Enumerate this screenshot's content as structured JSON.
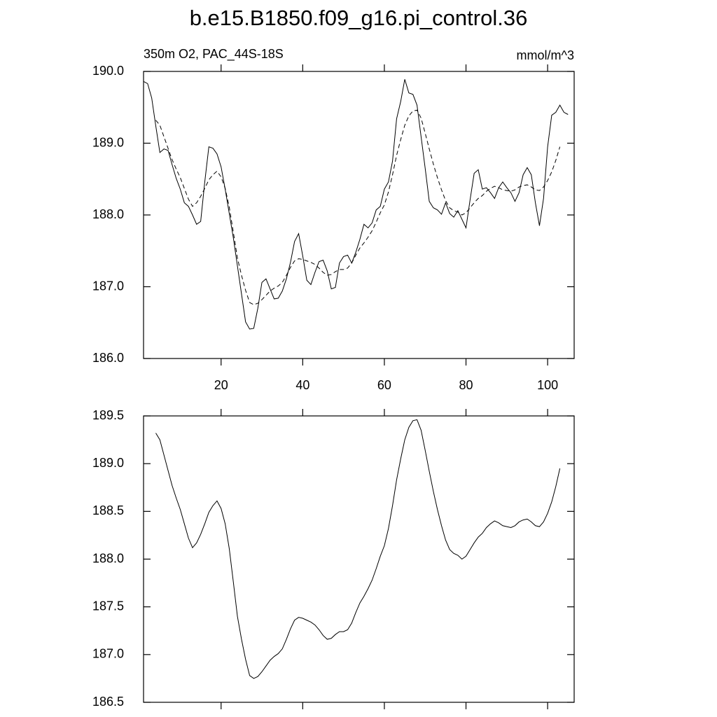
{
  "chart_data": [
    {
      "type": "line",
      "title": "b.e15.B1850.f09_g16.pi_control.36",
      "subtitle_left": "350m O2, PAC_44S-18S",
      "subtitle_right": "mmol/m^3",
      "x": [
        1,
        2,
        3,
        4,
        5,
        6,
        7,
        8,
        9,
        10,
        11,
        12,
        13,
        14,
        15,
        16,
        17,
        18,
        19,
        20,
        21,
        22,
        23,
        24,
        25,
        26,
        27,
        28,
        29,
        30,
        31,
        32,
        33,
        34,
        35,
        36,
        37,
        38,
        39,
        40,
        41,
        42,
        43,
        44,
        45,
        46,
        47,
        48,
        49,
        50,
        51,
        52,
        53,
        54,
        55,
        56,
        57,
        58,
        59,
        60,
        61,
        62,
        63,
        64,
        65,
        66,
        67,
        68,
        69,
        70,
        71,
        72,
        73,
        74,
        75,
        76,
        77,
        78,
        79,
        80,
        81,
        82,
        83,
        84,
        85,
        86,
        87,
        88,
        89,
        90,
        91,
        92,
        93,
        94,
        95,
        96,
        97,
        98,
        99,
        100,
        101,
        102,
        103,
        104,
        105
      ],
      "series": [
        {
          "color": "#000000",
          "dash": "solid",
          "values": [
            189.86,
            189.83,
            189.63,
            189.24,
            188.87,
            188.92,
            188.9,
            188.7,
            188.51,
            188.36,
            188.17,
            188.12,
            188.0,
            187.87,
            187.91,
            188.46,
            188.95,
            188.93,
            188.85,
            188.67,
            188.36,
            188.02,
            187.68,
            187.29,
            186.9,
            186.51,
            186.41,
            186.42,
            186.7,
            187.06,
            187.11,
            186.97,
            186.83,
            186.84,
            186.94,
            187.11,
            187.34,
            187.63,
            187.74,
            187.43,
            187.09,
            187.03,
            187.2,
            187.35,
            187.37,
            187.22,
            186.97,
            186.99,
            187.33,
            187.42,
            187.44,
            187.33,
            187.48,
            187.66,
            187.87,
            187.82,
            187.89,
            188.07,
            188.12,
            188.36,
            188.46,
            188.75,
            189.34,
            189.58,
            189.89,
            189.7,
            189.68,
            189.53,
            189.09,
            188.65,
            188.19,
            188.1,
            188.07,
            188.01,
            188.17,
            188.02,
            187.97,
            188.06,
            187.94,
            187.82,
            188.21,
            188.58,
            188.63,
            188.36,
            188.38,
            188.31,
            188.23,
            188.38,
            188.46,
            188.38,
            188.31,
            188.19,
            188.31,
            188.56,
            188.66,
            188.56,
            188.17,
            187.85,
            188.23,
            188.95,
            189.39,
            189.43,
            189.53,
            189.43,
            189.4
          ]
        },
        {
          "color": "#000000",
          "dash": "dashed",
          "values": [
            null,
            null,
            null,
            189.32,
            189.25,
            189.09,
            188.93,
            188.77,
            188.64,
            188.52,
            188.37,
            188.22,
            188.12,
            188.17,
            188.26,
            188.37,
            188.49,
            188.56,
            188.61,
            188.53,
            188.37,
            188.11,
            187.76,
            187.4,
            187.16,
            186.95,
            186.78,
            186.75,
            186.77,
            186.82,
            186.88,
            186.94,
            186.98,
            187.01,
            187.06,
            187.16,
            187.27,
            187.36,
            187.39,
            187.38,
            187.36,
            187.34,
            187.31,
            187.26,
            187.2,
            187.16,
            187.17,
            187.21,
            187.24,
            187.24,
            187.26,
            187.33,
            187.44,
            187.54,
            187.61,
            187.69,
            187.78,
            187.9,
            188.03,
            188.14,
            188.32,
            188.56,
            188.83,
            189.05,
            189.25,
            189.38,
            189.45,
            189.46,
            189.35,
            189.14,
            188.92,
            188.71,
            188.52,
            188.35,
            188.2,
            188.1,
            188.06,
            188.04,
            188.0,
            188.03,
            188.1,
            188.17,
            188.23,
            188.27,
            188.33,
            188.37,
            188.4,
            188.38,
            188.35,
            188.34,
            188.33,
            188.35,
            188.39,
            188.41,
            188.42,
            188.39,
            188.35,
            188.34,
            188.39,
            188.48,
            188.6,
            188.76,
            188.95,
            null,
            null
          ]
        }
      ],
      "xlim": [
        1,
        106.5
      ],
      "ylim": [
        186,
        190
      ],
      "xticks": [
        20,
        40,
        60,
        80,
        100
      ],
      "xtick_labels": true,
      "yticks": [
        {
          "value": 186,
          "label": "186.0"
        },
        {
          "value": 187,
          "label": "187.0"
        },
        {
          "value": 188,
          "label": "188.0"
        },
        {
          "value": 189,
          "label": "189.0"
        },
        {
          "value": 190,
          "label": "190.0"
        }
      ]
    },
    {
      "type": "line",
      "x": [
        4,
        5,
        6,
        7,
        8,
        9,
        10,
        11,
        12,
        13,
        14,
        15,
        16,
        17,
        18,
        19,
        20,
        21,
        22,
        23,
        24,
        25,
        26,
        27,
        28,
        29,
        30,
        31,
        32,
        33,
        34,
        35,
        36,
        37,
        38,
        39,
        40,
        41,
        42,
        43,
        44,
        45,
        46,
        47,
        48,
        49,
        50,
        51,
        52,
        53,
        54,
        55,
        56,
        57,
        58,
        59,
        60,
        61,
        62,
        63,
        64,
        65,
        66,
        67,
        68,
        69,
        70,
        71,
        72,
        73,
        74,
        75,
        76,
        77,
        78,
        79,
        80,
        81,
        82,
        83,
        84,
        85,
        86,
        87,
        88,
        89,
        90,
        91,
        92,
        93,
        94,
        95,
        96,
        97,
        98,
        99,
        100,
        101,
        102,
        103
      ],
      "series": [
        {
          "color": "#000000",
          "dash": "solid",
          "values": [
            189.32,
            189.25,
            189.09,
            188.93,
            188.77,
            188.64,
            188.52,
            188.37,
            188.22,
            188.12,
            188.17,
            188.26,
            188.37,
            188.49,
            188.56,
            188.61,
            188.53,
            188.37,
            188.11,
            187.76,
            187.4,
            187.16,
            186.95,
            186.78,
            186.75,
            186.77,
            186.82,
            186.88,
            186.94,
            186.98,
            187.01,
            187.06,
            187.16,
            187.27,
            187.36,
            187.39,
            187.38,
            187.36,
            187.34,
            187.31,
            187.26,
            187.2,
            187.16,
            187.17,
            187.21,
            187.24,
            187.24,
            187.26,
            187.33,
            187.44,
            187.54,
            187.61,
            187.69,
            187.78,
            187.9,
            188.03,
            188.14,
            188.32,
            188.56,
            188.83,
            189.05,
            189.25,
            189.38,
            189.45,
            189.46,
            189.35,
            189.14,
            188.92,
            188.71,
            188.52,
            188.35,
            188.2,
            188.1,
            188.06,
            188.04,
            188.0,
            188.03,
            188.1,
            188.17,
            188.23,
            188.27,
            188.33,
            188.37,
            188.4,
            188.38,
            188.35,
            188.34,
            188.33,
            188.35,
            188.39,
            188.41,
            188.42,
            188.39,
            188.35,
            188.34,
            188.39,
            188.48,
            188.6,
            188.76,
            188.95
          ]
        }
      ],
      "xlim": [
        1,
        106.5
      ],
      "ylim": [
        186.5,
        189.5
      ],
      "xticks": [
        20,
        40,
        60,
        80,
        100
      ],
      "xtick_labels": false,
      "yticks": [
        186.5,
        {
          "value": 187,
          "label": "187.0"
        },
        187.5,
        {
          "value": 188,
          "label": "188.0"
        },
        188.5,
        {
          "value": 189,
          "label": "189.0"
        },
        189.5
      ]
    }
  ]
}
